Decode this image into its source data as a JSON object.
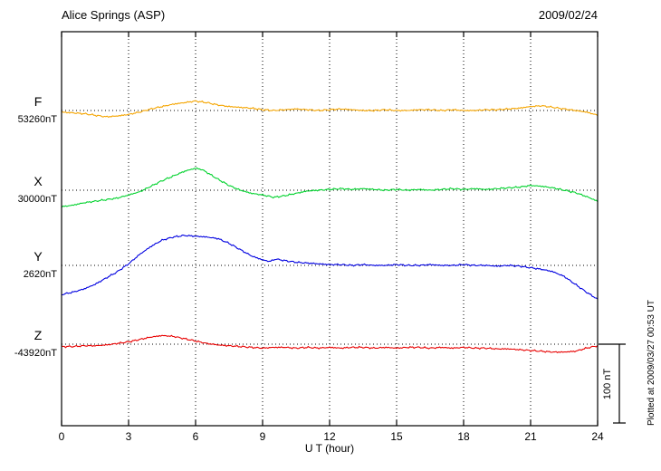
{
  "chart_data": {
    "type": "line",
    "title": "Alice Springs (ASP)",
    "date": "2009/02/24",
    "xlabel": "U T (hour)",
    "ylabel": "",
    "xlim": [
      0,
      24
    ],
    "x_ticks": [
      0,
      3,
      6,
      9,
      12,
      15,
      18,
      21,
      24
    ],
    "grid": "dotted-vertical-at-3h-and-dotted-baselines",
    "plotted_note": "Plotted at 2009/03/27 00:53 UT",
    "scale_bar": {
      "label": "100 nT",
      "nT": 100
    },
    "series": [
      {
        "name": "F",
        "baseline_label": "53260nT",
        "color": "#f5a500",
        "units": "nT offset from baseline",
        "points": [
          [
            0,
            -2
          ],
          [
            0.5,
            -3
          ],
          [
            1,
            -4
          ],
          [
            1.5,
            -6
          ],
          [
            2,
            -8
          ],
          [
            2.5,
            -7
          ],
          [
            3,
            -5
          ],
          [
            3.5,
            -2
          ],
          [
            4,
            2
          ],
          [
            4.5,
            5
          ],
          [
            5,
            8
          ],
          [
            5.5,
            10
          ],
          [
            6,
            12
          ],
          [
            6.5,
            10
          ],
          [
            7,
            7
          ],
          [
            7.5,
            5
          ],
          [
            8,
            4
          ],
          [
            8.5,
            3
          ],
          [
            9,
            1
          ],
          [
            9.5,
            0
          ],
          [
            10,
            1
          ],
          [
            10.5,
            2
          ],
          [
            11,
            1
          ],
          [
            11.5,
            0
          ],
          [
            12,
            1
          ],
          [
            12.5,
            2
          ],
          [
            13,
            1
          ],
          [
            13.5,
            0
          ],
          [
            14,
            0
          ],
          [
            14.5,
            1
          ],
          [
            15,
            0
          ],
          [
            15.5,
            0
          ],
          [
            16,
            1
          ],
          [
            16.5,
            1
          ],
          [
            17,
            0
          ],
          [
            17.5,
            1
          ],
          [
            18,
            0
          ],
          [
            18.5,
            0
          ],
          [
            19,
            1
          ],
          [
            19.5,
            1
          ],
          [
            20,
            2
          ],
          [
            20.5,
            3
          ],
          [
            21,
            5
          ],
          [
            21.5,
            6
          ],
          [
            22,
            4
          ],
          [
            22.5,
            2
          ],
          [
            23,
            0
          ],
          [
            23.5,
            -2
          ],
          [
            24,
            -6
          ]
        ]
      },
      {
        "name": "X",
        "baseline_label": "30000nT",
        "color": "#00d22d",
        "units": "nT offset from baseline",
        "points": [
          [
            0,
            -21
          ],
          [
            0.5,
            -19
          ],
          [
            1,
            -16
          ],
          [
            1.5,
            -14
          ],
          [
            2,
            -12
          ],
          [
            2.5,
            -10
          ],
          [
            3,
            -6
          ],
          [
            3.5,
            -2
          ],
          [
            4,
            5
          ],
          [
            4.5,
            12
          ],
          [
            5,
            18
          ],
          [
            5.5,
            24
          ],
          [
            6,
            28
          ],
          [
            6.3,
            26
          ],
          [
            6.6,
            21
          ],
          [
            7,
            14
          ],
          [
            7.5,
            6
          ],
          [
            8,
            0
          ],
          [
            8.5,
            -4
          ],
          [
            9,
            -6
          ],
          [
            9.5,
            -9
          ],
          [
            10,
            -7
          ],
          [
            10.5,
            -4
          ],
          [
            11,
            -1
          ],
          [
            11.5,
            0
          ],
          [
            12,
            1
          ],
          [
            12.5,
            2
          ],
          [
            13,
            1
          ],
          [
            13.5,
            2
          ],
          [
            14,
            1
          ],
          [
            14.5,
            0
          ],
          [
            15,
            1
          ],
          [
            15.5,
            0
          ],
          [
            16,
            1
          ],
          [
            16.5,
            0
          ],
          [
            17,
            1
          ],
          [
            17.5,
            2
          ],
          [
            18,
            1
          ],
          [
            18.5,
            2
          ],
          [
            19,
            1
          ],
          [
            19.5,
            2
          ],
          [
            20,
            3
          ],
          [
            20.5,
            4
          ],
          [
            21,
            6
          ],
          [
            21.5,
            5
          ],
          [
            22,
            3
          ],
          [
            22.5,
            0
          ],
          [
            23,
            -3
          ],
          [
            23.5,
            -8
          ],
          [
            24,
            -14
          ]
        ]
      },
      {
        "name": "Y",
        "baseline_label": "2620nT",
        "color": "#0000e0",
        "units": "nT offset from baseline",
        "points": [
          [
            0,
            -37
          ],
          [
            0.5,
            -34
          ],
          [
            1,
            -30
          ],
          [
            1.5,
            -24
          ],
          [
            2,
            -16
          ],
          [
            2.5,
            -8
          ],
          [
            3,
            2
          ],
          [
            3.5,
            14
          ],
          [
            4,
            24
          ],
          [
            4.5,
            32
          ],
          [
            5,
            36
          ],
          [
            5.5,
            38
          ],
          [
            6,
            37
          ],
          [
            6.5,
            36
          ],
          [
            7,
            34
          ],
          [
            7.5,
            28
          ],
          [
            8,
            20
          ],
          [
            8.5,
            12
          ],
          [
            9,
            7
          ],
          [
            9.3,
            5
          ],
          [
            9.6,
            8
          ],
          [
            10,
            6
          ],
          [
            10.5,
            4
          ],
          [
            11,
            3
          ],
          [
            11.5,
            2
          ],
          [
            12,
            1
          ],
          [
            12.5,
            1
          ],
          [
            13,
            0
          ],
          [
            13.5,
            1
          ],
          [
            14,
            0
          ],
          [
            14.5,
            0
          ],
          [
            15,
            1
          ],
          [
            15.5,
            0
          ],
          [
            16,
            0
          ],
          [
            16.5,
            1
          ],
          [
            17,
            0
          ],
          [
            17.5,
            0
          ],
          [
            18,
            1
          ],
          [
            18.5,
            0
          ],
          [
            19,
            0
          ],
          [
            19.5,
            -1
          ],
          [
            20,
            0
          ],
          [
            20.5,
            -1
          ],
          [
            21,
            -3
          ],
          [
            21.5,
            -5
          ],
          [
            22,
            -8
          ],
          [
            22.5,
            -14
          ],
          [
            23,
            -24
          ],
          [
            23.5,
            -34
          ],
          [
            24,
            -43
          ]
        ]
      },
      {
        "name": "Z",
        "baseline_label": "-43920nT",
        "color": "#e80000",
        "units": "nT offset from baseline",
        "points": [
          [
            0,
            -3
          ],
          [
            0.5,
            -3
          ],
          [
            1,
            -2
          ],
          [
            1.5,
            -2
          ],
          [
            2,
            -1
          ],
          [
            2.5,
            1
          ],
          [
            3,
            3
          ],
          [
            3.5,
            6
          ],
          [
            4,
            9
          ],
          [
            4.5,
            11
          ],
          [
            5,
            10
          ],
          [
            5.5,
            7
          ],
          [
            6,
            4
          ],
          [
            6.5,
            1
          ],
          [
            7,
            -1
          ],
          [
            7.5,
            -2
          ],
          [
            8,
            -3
          ],
          [
            8.5,
            -4
          ],
          [
            9,
            -5
          ],
          [
            9.5,
            -4
          ],
          [
            10,
            -4
          ],
          [
            10.5,
            -5
          ],
          [
            11,
            -4
          ],
          [
            11.5,
            -5
          ],
          [
            12,
            -4
          ],
          [
            12.5,
            -5
          ],
          [
            13,
            -4
          ],
          [
            13.5,
            -4
          ],
          [
            14,
            -5
          ],
          [
            14.5,
            -4
          ],
          [
            15,
            -5
          ],
          [
            15.5,
            -4
          ],
          [
            16,
            -4
          ],
          [
            16.5,
            -5
          ],
          [
            17,
            -4
          ],
          [
            17.5,
            -5
          ],
          [
            18,
            -4
          ],
          [
            18.5,
            -5
          ],
          [
            19,
            -5
          ],
          [
            19.5,
            -6
          ],
          [
            20,
            -6
          ],
          [
            20.5,
            -7
          ],
          [
            21,
            -8
          ],
          [
            21.5,
            -9
          ],
          [
            22,
            -10
          ],
          [
            22.5,
            -10
          ],
          [
            23,
            -9
          ],
          [
            23.5,
            -5
          ],
          [
            24,
            -2
          ]
        ]
      }
    ]
  }
}
